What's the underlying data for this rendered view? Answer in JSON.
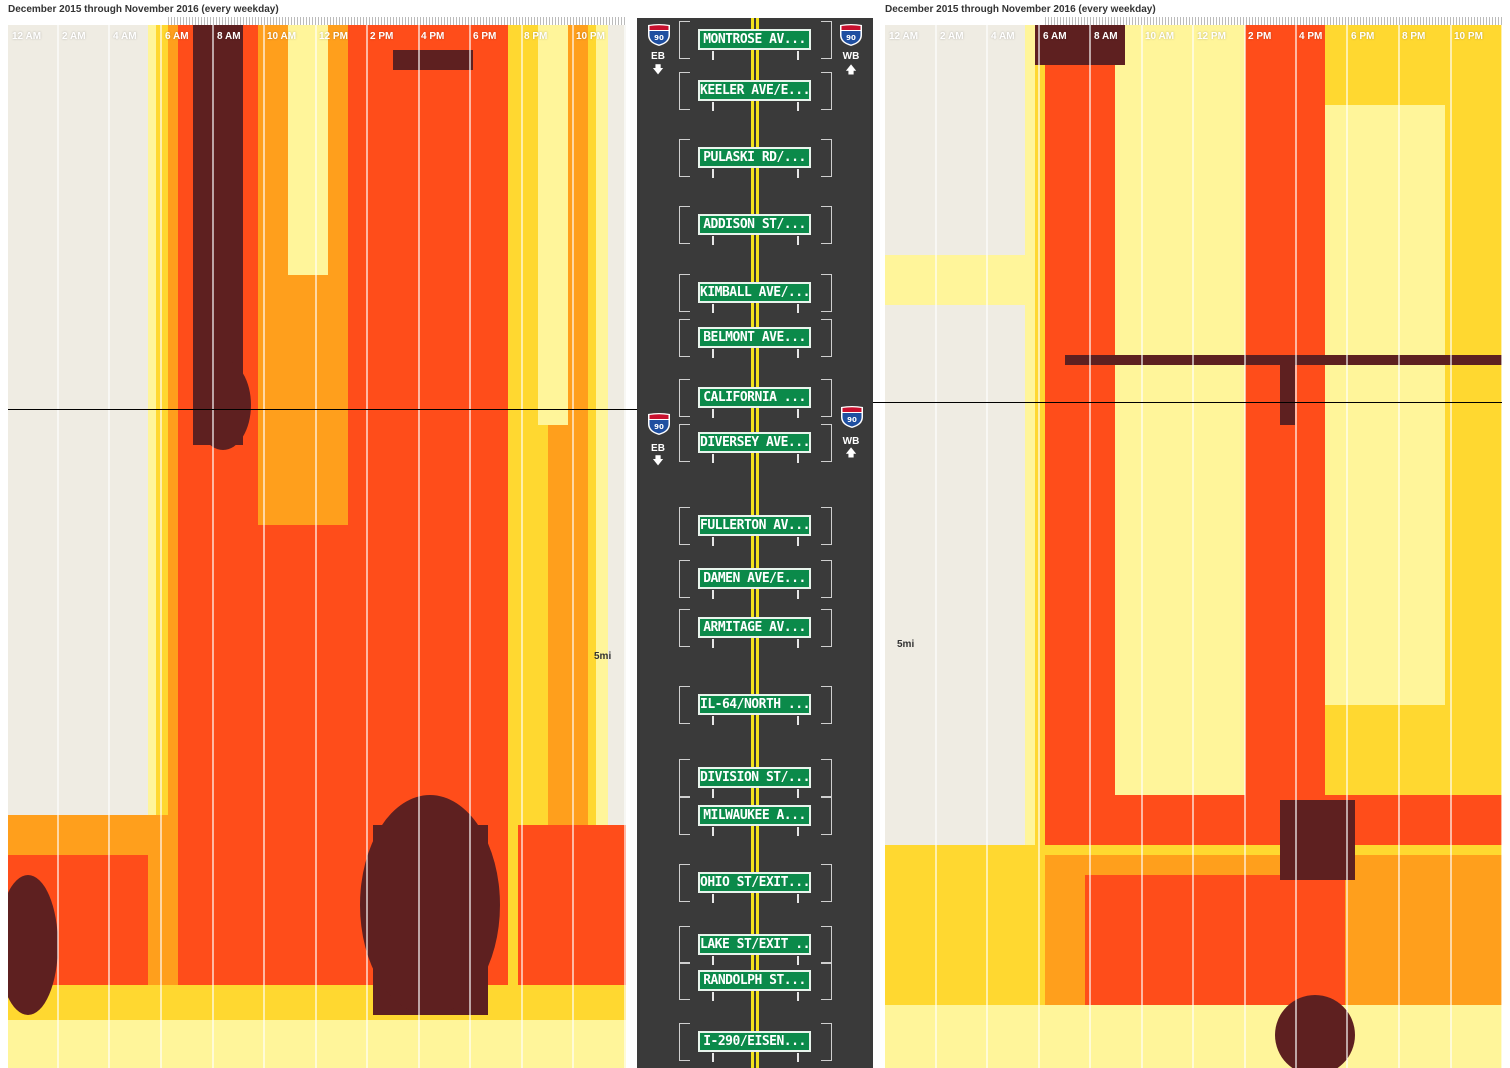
{
  "title": "December 2015 through November 2016 (every weekday)",
  "hours": [
    "12 AM",
    "2 AM",
    "4 AM",
    "6 AM",
    "8 AM",
    "10 AM",
    "12 PM",
    "2 PM",
    "4 PM",
    "6 PM",
    "8 PM",
    "10 PM"
  ],
  "left": {
    "distance_label": "5mi"
  },
  "right": {
    "distance_label": "5mi"
  },
  "shield": {
    "route": "90",
    "eb": "EB",
    "wb": "WB"
  },
  "colors": {
    "bg": "#efece3",
    "pale": "#fff59a",
    "yellow": "#ffd830",
    "orange": "#ff9f1c",
    "red": "#ff4d1a",
    "darkred": "#5e2020",
    "road": "#3a3a3a",
    "sign": "#0b8a4a"
  },
  "signs": [
    "MONTROSE AV...",
    "KEELER AVE/E...",
    "PULASKI RD/...",
    "ADDISON ST/...",
    "KIMBALL AVE/...",
    "BELMONT AVE...",
    "CALIFORNIA ...",
    "DIVERSEY AVE...",
    "FULLERTON AV...",
    "DAMEN AVE/E...",
    "ARMITAGE AV...",
    "IL-64/NORTH ...",
    "DIVISION ST/...",
    "MILWAUKEE A...",
    "OHIO ST/EXIT...",
    "LAKE ST/EXIT ...",
    "RANDOLPH ST...",
    "I-290/EISEN..."
  ]
}
